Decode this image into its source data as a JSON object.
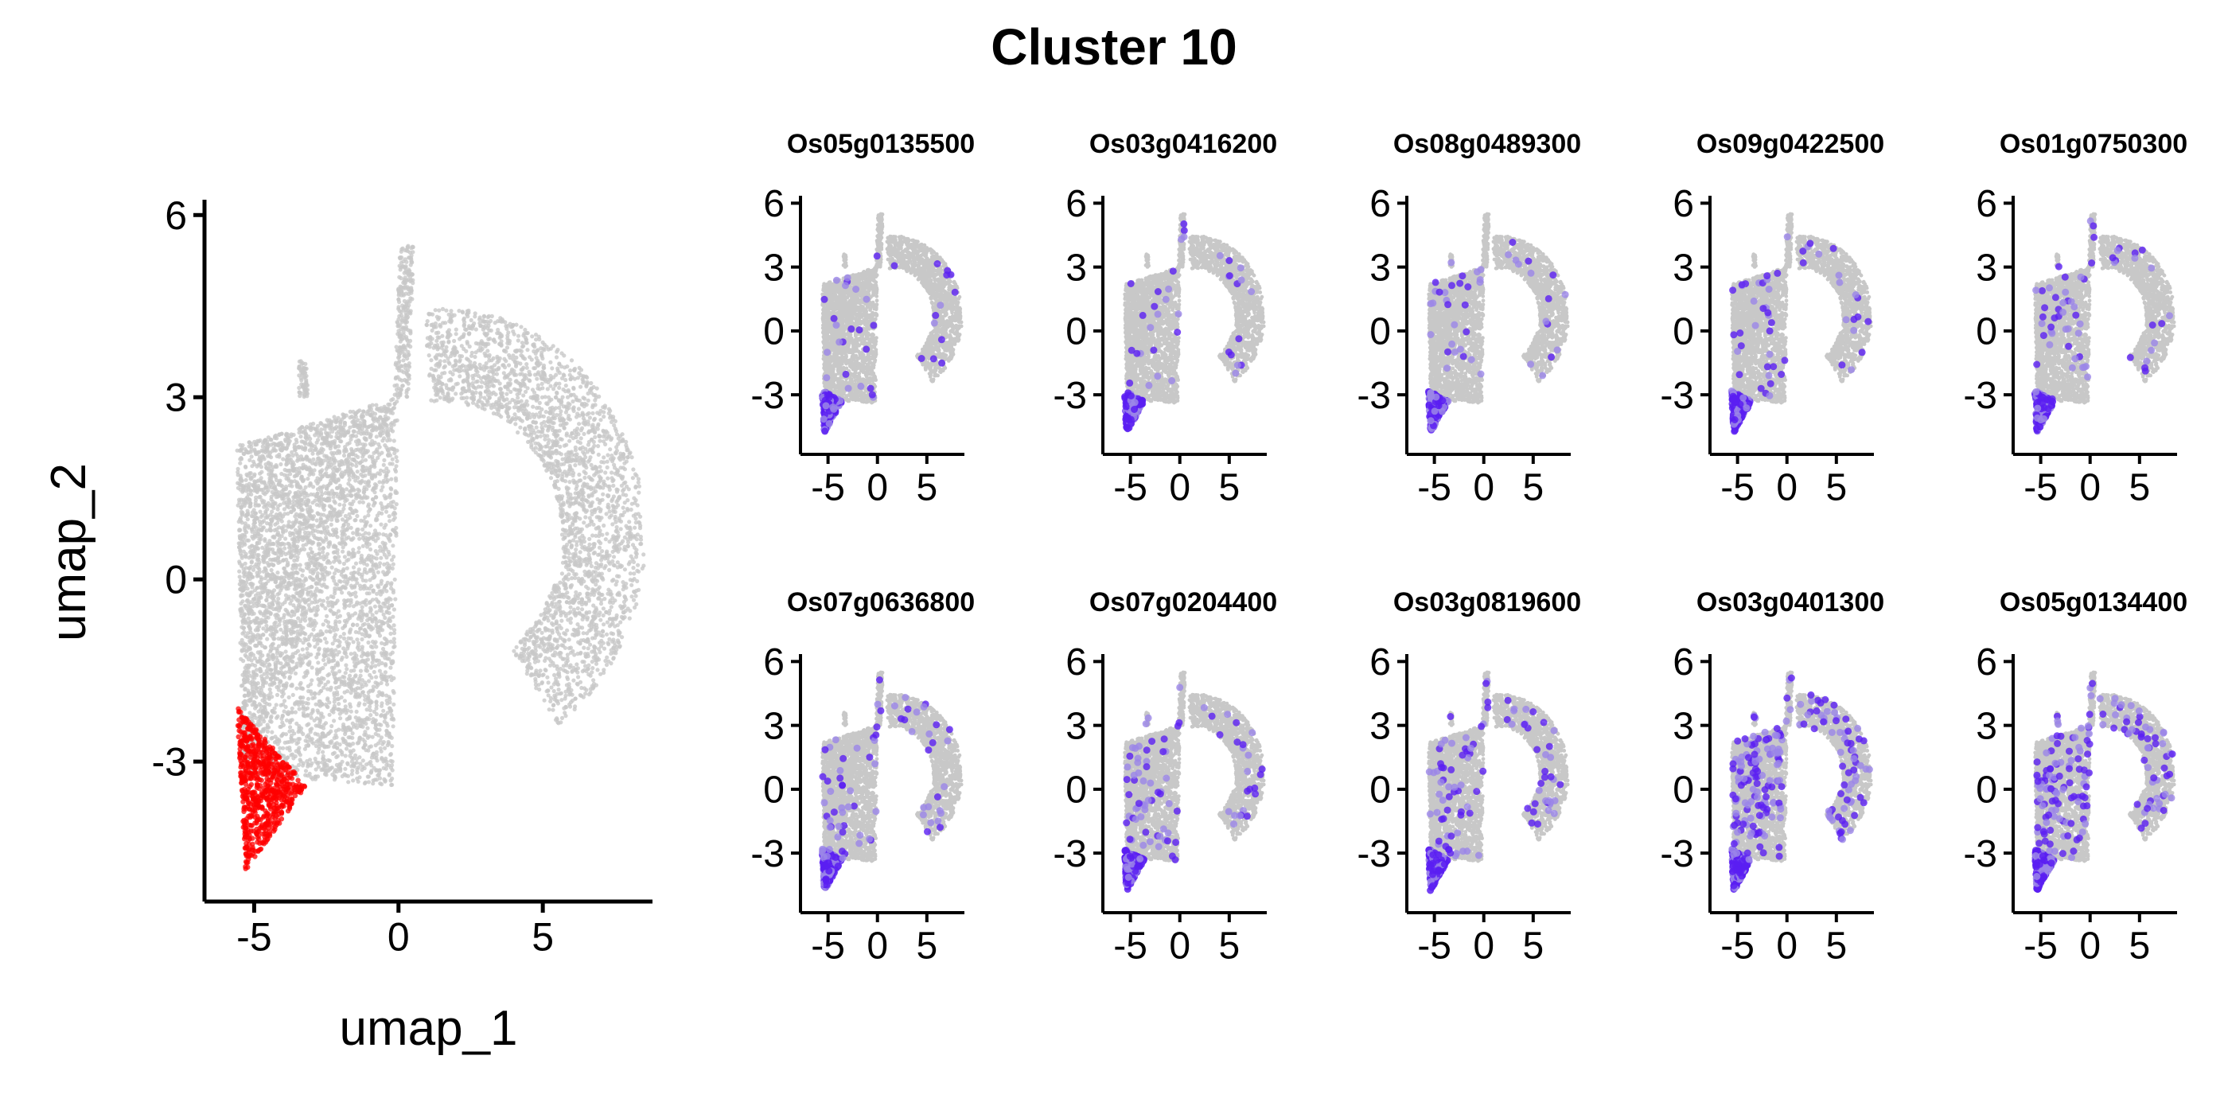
{
  "figure_title": "Cluster 10",
  "colors": {
    "background_cells": "#c8c8c8",
    "cluster_highlight": "#ff0000",
    "expression_high": "#5b1ff2",
    "expression_mid": "#9b86e8",
    "axis": "#000000"
  },
  "chart_data": [
    {
      "type": "scatter",
      "name": "cluster-overview",
      "title": "",
      "xlabel": "umap_1",
      "ylabel": "umap_2",
      "xlim": [
        -6.5,
        8.8
      ],
      "ylim": [
        -5.2,
        6.2
      ],
      "xticks": [
        -5,
        0,
        5
      ],
      "yticks": [
        -3,
        0,
        3,
        6
      ],
      "xtick_labels": [
        "-5",
        "0",
        "5"
      ],
      "ytick_labels": [
        "-3",
        "0",
        "3",
        "6"
      ],
      "grid": false,
      "legend": "none",
      "series": [
        {
          "role": "all-cells",
          "color": "#c8c8c8"
        },
        {
          "role": "cluster-10",
          "color": "#ff0000",
          "x_range": [
            -5.6,
            -3.2
          ],
          "y_range": [
            -4.8,
            -2.1
          ]
        }
      ]
    },
    {
      "type": "scatter",
      "name": "gene-feature-panels",
      "xlim": [
        -6.5,
        8.8
      ],
      "ylim": [
        -5.2,
        6.2
      ],
      "xticks": [
        -5,
        0,
        5
      ],
      "yticks": [
        -3,
        0,
        3,
        6
      ],
      "xtick_labels": [
        "-5",
        "0",
        "5"
      ],
      "ytick_labels": [
        "-3",
        "0",
        "3",
        "6"
      ],
      "grid": false,
      "legend": "none",
      "genes": [
        {
          "label": "Os05g0135500",
          "expression_density": 0.35
        },
        {
          "label": "Os03g0416200",
          "expression_density": 0.35
        },
        {
          "label": "Os08g0489300",
          "expression_density": 0.4
        },
        {
          "label": "Os09g0422500",
          "expression_density": 0.45
        },
        {
          "label": "Os01g0750300",
          "expression_density": 0.5
        },
        {
          "label": "Os07g0636800",
          "expression_density": 0.55
        },
        {
          "label": "Os07g0204400",
          "expression_density": 0.6
        },
        {
          "label": "Os03g0819600",
          "expression_density": 0.65
        },
        {
          "label": "Os03g0401300",
          "expression_density": 1.0
        },
        {
          "label": "Os05g0134400",
          "expression_density": 0.9
        }
      ]
    }
  ]
}
